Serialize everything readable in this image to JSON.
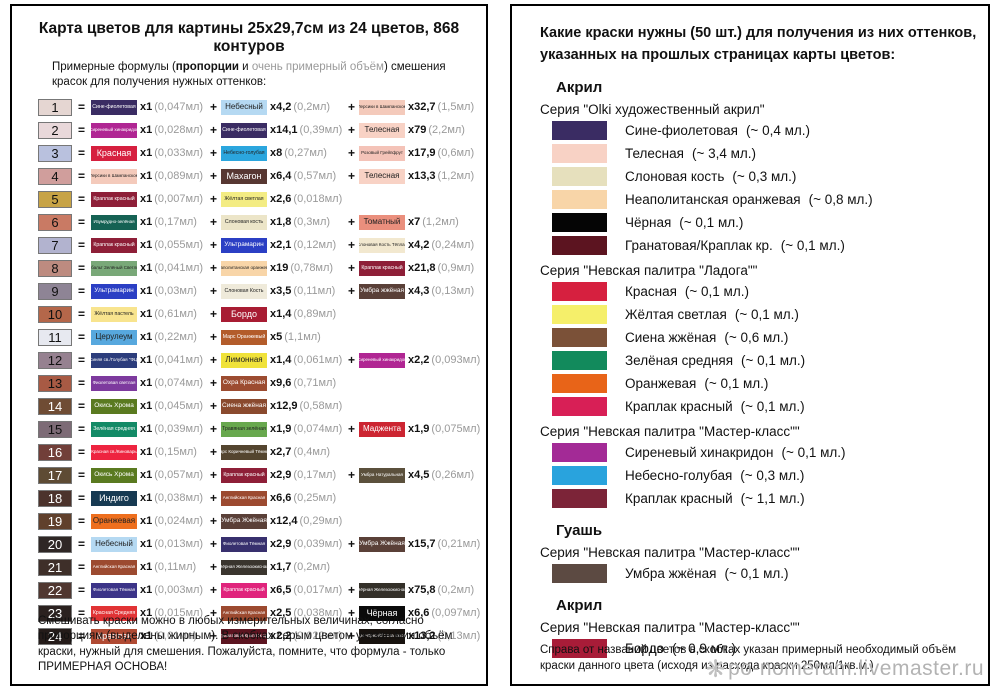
{
  "left_panel": {
    "title": "Карта цветов для картины 25х29,7см из 24 цветов, 868 контуров",
    "subtitle": {
      "pre": "Примерные формулы (",
      "bold": "пропорции",
      "mid": " и ",
      "gray": "очень примерный объём",
      "post": ") смешения красок для получения нужных оттенков:"
    },
    "rows": [
      {
        "num": "1",
        "swatch": "#e5d6d2",
        "components": [
          {
            "name": "Сине-фиолетовая",
            "bg": "#3a2c63",
            "mult": "х1",
            "vol": "(0,047мл)"
          },
          {
            "name": "Небесный",
            "bg": "#b5d9f2",
            "mult": "х4,2",
            "vol": "(0,2мл)"
          },
          {
            "name": "Персики в Шампанском",
            "bg": "#f4cabb",
            "mult": "х32,7",
            "vol": "(1,5мл)"
          }
        ]
      },
      {
        "num": "2",
        "swatch": "#e9d8da",
        "components": [
          {
            "name": "Сиреневый хинакридон",
            "bg": "#b02693",
            "mult": "х1",
            "vol": "(0,028мл)"
          },
          {
            "name": "Сине-фиолетовая",
            "bg": "#3a2c63",
            "mult": "х14,1",
            "vol": "(0,39мл)"
          },
          {
            "name": "Телесная",
            "bg": "#f8d2c5",
            "mult": "х79",
            "vol": "(2,2мл)"
          }
        ]
      },
      {
        "num": "3",
        "swatch": "#b9c1de",
        "components": [
          {
            "name": "Красная",
            "bg": "#d6203f",
            "mult": "х1",
            "vol": "(0,033мл)"
          },
          {
            "name": "Небесно-голубая",
            "bg": "#2ba6de",
            "mult": "х8",
            "vol": "(0,27мл)"
          },
          {
            "name": "Розовый Грейпфрут",
            "bg": "#f4c3b8",
            "mult": "х17,9",
            "vol": "(0,6мл)"
          }
        ]
      },
      {
        "num": "4",
        "swatch": "#d09e9c",
        "components": [
          {
            "name": "Персики в Шампанском",
            "bg": "#f4cabb",
            "mult": "х1",
            "vol": "(0,089мл)"
          },
          {
            "name": "Махагон",
            "bg": "#573732",
            "mult": "х6,4",
            "vol": "(0,57мл)"
          },
          {
            "name": "Телесная",
            "bg": "#f8d2c5",
            "mult": "х13,3",
            "vol": "(1,2мл)"
          }
        ]
      },
      {
        "num": "5",
        "swatch": "#c7a346",
        "components": [
          {
            "name": "Краплак красный",
            "bg": "#8e1f38",
            "mult": "х1",
            "vol": "(0,007мл)"
          },
          {
            "name": "Жёлтая светлая",
            "bg": "#f3ec83",
            "mult": "х2,6",
            "vol": "(0,018мл)"
          }
        ]
      },
      {
        "num": "6",
        "swatch": "#c97a64",
        "components": [
          {
            "name": "Изумрудно-зелёная",
            "bg": "#156254",
            "mult": "х1",
            "vol": "(0,17мл)"
          },
          {
            "name": "Слоновая кость",
            "bg": "#ece5c8",
            "mult": "х1,8",
            "vol": "(0,3мл)"
          },
          {
            "name": "Томатный",
            "bg": "#ea8f7d",
            "mult": "х7",
            "vol": "(1,2мл)"
          }
        ]
      },
      {
        "num": "7",
        "swatch": "#b2b3cf",
        "components": [
          {
            "name": "Краплак красный",
            "bg": "#8e1f38",
            "mult": "х1",
            "vol": "(0,055мл)"
          },
          {
            "name": "Ультрамарин",
            "bg": "#2b3fc4",
            "mult": "х2,1",
            "vol": "(0,12мл)"
          },
          {
            "name": "Слоновая Кость Тёплая",
            "bg": "#f2e8cf",
            "mult": "х4,2",
            "vol": "(0,24мл)"
          }
        ]
      },
      {
        "num": "8",
        "swatch": "#bd8b80",
        "components": [
          {
            "name": "Кобальт Зелёный Светлый",
            "bg": "#79a878",
            "mult": "х1",
            "vol": "(0,041мл)"
          },
          {
            "name": "Неаполитанская оранжевая",
            "bg": "#f8d5a8",
            "mult": "х19",
            "vol": "(0,78мл)"
          },
          {
            "name": "Краплак красный",
            "bg": "#8e1f38",
            "mult": "х21,8",
            "vol": "(0,9мл)"
          }
        ]
      },
      {
        "num": "9",
        "swatch": "#8e8495",
        "components": [
          {
            "name": "Ультрамарин",
            "bg": "#2b3fc4",
            "mult": "х1",
            "vol": "(0,03мл)"
          },
          {
            "name": "Слоновая Кость",
            "bg": "#efeada",
            "mult": "х3,5",
            "vol": "(0,11мл)"
          },
          {
            "name": "Умбра жжёная",
            "bg": "#5a4038",
            "mult": "х4,3",
            "vol": "(0,13мл)"
          }
        ]
      },
      {
        "num": "10",
        "swatch": "#b4674a",
        "components": [
          {
            "name": "Жёлтая пастель",
            "bg": "#f8e48e",
            "mult": "х1",
            "vol": "(0,61мл)"
          },
          {
            "name": "Бордо",
            "bg": "#a81c33",
            "mult": "х1,4",
            "vol": "(0,89мл)"
          }
        ]
      },
      {
        "num": "11",
        "swatch": "#e7e9f0",
        "components": [
          {
            "name": "Церулеум",
            "bg": "#57a8de",
            "mult": "х1",
            "vol": "(0,22мл)"
          },
          {
            "name": "Марс Оранжевый",
            "bg": "#b35c2b",
            "mult": "х5",
            "vol": "(1,1мл)"
          }
        ]
      },
      {
        "num": "12",
        "swatch": "#968190",
        "components": [
          {
            "name": "Синяя св./Голубая \"ФЦ\"",
            "bg": "#2c3d7c",
            "mult": "х1",
            "vol": "(0,041мл)"
          },
          {
            "name": "Лимонная",
            "bg": "#f0e23a",
            "mult": "х1,4",
            "vol": "(0,061мл)"
          },
          {
            "name": "Сиреневый хинакридон",
            "bg": "#b02693",
            "mult": "х2,2",
            "vol": "(0,093мл)"
          }
        ]
      },
      {
        "num": "13",
        "swatch": "#a85a44",
        "components": [
          {
            "name": "Фиолетовая светлая",
            "bg": "#7d3a9e",
            "mult": "х1",
            "vol": "(0,074мл)"
          },
          {
            "name": "Охра Красная",
            "bg": "#9c4c31",
            "mult": "х9,6",
            "vol": "(0,71мл)"
          }
        ]
      },
      {
        "num": "14",
        "swatch": "#6f4c34",
        "components": [
          {
            "name": "Окись Хрома",
            "bg": "#5a7a20",
            "mult": "х1",
            "vol": "(0,045мл)"
          },
          {
            "name": "Сиена жжёная",
            "bg": "#8a4a2e",
            "mult": "х12,9",
            "vol": "(0,58мл)"
          }
        ]
      },
      {
        "num": "15",
        "swatch": "#7d6b76",
        "components": [
          {
            "name": "Зелёная средняя",
            "bg": "#138a66",
            "mult": "х1",
            "vol": "(0,039мл)"
          },
          {
            "name": "Травяная зелёная",
            "bg": "#68a84e",
            "mult": "х1,9",
            "vol": "(0,074мл)"
          },
          {
            "name": "Маджента",
            "bg": "#cc2531",
            "mult": "х1,9",
            "vol": "(0,075мл)"
          }
        ]
      },
      {
        "num": "16",
        "swatch": "#713f39",
        "components": [
          {
            "name": "Красная св./Киноварь",
            "bg": "#ee2440",
            "mult": "х1",
            "vol": "(0,15мл)"
          },
          {
            "name": "Марс Коричневый Тёмный",
            "bg": "#54452f",
            "mult": "х2,7",
            "vol": "(0,4мл)"
          }
        ]
      },
      {
        "num": "17",
        "swatch": "#5e4b34",
        "components": [
          {
            "name": "Окись Хрома",
            "bg": "#5a7a20",
            "mult": "х1",
            "vol": "(0,057мл)"
          },
          {
            "name": "Краплак красный",
            "bg": "#8e1f38",
            "mult": "х2,9",
            "vol": "(0,17мл)"
          },
          {
            "name": "Умбра Натуральная",
            "bg": "#5b503c",
            "mult": "х4,5",
            "vol": "(0,26мл)"
          }
        ]
      },
      {
        "num": "18",
        "swatch": "#4c332c",
        "components": [
          {
            "name": "Индиго",
            "bg": "#173a52",
            "mult": "х1",
            "vol": "(0,038мл)"
          },
          {
            "name": "Английская Красная",
            "bg": "#9c4a30",
            "mult": "х6,6",
            "vol": "(0,25мл)"
          }
        ]
      },
      {
        "num": "19",
        "swatch": "#60402c",
        "components": [
          {
            "name": "Оранжевая",
            "bg": "#ee6f1e",
            "mult": "х1",
            "vol": "(0,024мл)"
          },
          {
            "name": "Умбра Жжёная",
            "bg": "#5a4038",
            "mult": "х12,4",
            "vol": "(0,29мл)"
          }
        ]
      },
      {
        "num": "20",
        "swatch": "#2f2725",
        "components": [
          {
            "name": "Небесный",
            "bg": "#b5d9f2",
            "mult": "х1",
            "vol": "(0,013мл)"
          },
          {
            "name": "Фиолетовая Тёмная",
            "bg": "#38306e",
            "mult": "х2,9",
            "vol": "(0,039мл)"
          },
          {
            "name": "Умбра Жжёная",
            "bg": "#5a4038",
            "mult": "х15,7",
            "vol": "(0,21мл)"
          }
        ]
      },
      {
        "num": "21",
        "swatch": "#3e2f29",
        "components": [
          {
            "name": "Английская Красная",
            "bg": "#9c4a30",
            "mult": "х1",
            "vol": "(0,11мл)"
          },
          {
            "name": "Чёрная Железоокисная",
            "bg": "#3a352e",
            "mult": "х1,7",
            "vol": "(0,2мл)"
          }
        ]
      },
      {
        "num": "22",
        "swatch": "#503730",
        "components": [
          {
            "name": "Фиолетовая Тёмная",
            "bg": "#3c3488",
            "mult": "х1",
            "vol": "(0,003мл)"
          },
          {
            "name": "Краплак красный",
            "bg": "#e0247c",
            "mult": "х6,5",
            "vol": "(0,017мл)"
          },
          {
            "name": "Чёрная Железоокисная",
            "bg": "#343029",
            "mult": "х75,8",
            "vol": "(0,2мл)"
          }
        ]
      },
      {
        "num": "23",
        "swatch": "#2b211f",
        "components": [
          {
            "name": "Красная Средняя",
            "bg": "#e13335",
            "mult": "х1",
            "vol": "(0,015мл)"
          },
          {
            "name": "Английская Красная",
            "bg": "#9c4a30",
            "mult": "х2,5",
            "vol": "(0,038мл)"
          },
          {
            "name": "Чёрная",
            "bg": "#0a0a0a",
            "mult": "х6,6",
            "vol": "(0,097мл)"
          }
        ]
      },
      {
        "num": "24",
        "swatch": "#241b19",
        "components": [
          {
            "name": "Краплак",
            "bg": "#b04a33",
            "mult": "х1",
            "vol": "(0,01мл)"
          },
          {
            "name": "Гранатовая/Краплак кр.",
            "bg": "#5c1420",
            "mult": "х2,2",
            "vol": "(0,022мл)"
          },
          {
            "name": "Марс чёрный/Сажа газовая",
            "bg": "#17120e",
            "mult": "х13,2",
            "vol": "(0,13мл)"
          }
        ]
      }
    ],
    "footnote": "Смешивать краски можно в любых измерительных величинах, согласно пропорциям (выделены жирным). В скобках серым цветом указан мин.объём краски, нужный для смешения. Пожалуйста, помните, что формула - только ПРИМЕРНАЯ ОСНОВА!"
  },
  "right_panel": {
    "title": "Какие краски нужны (50 шт.) для получения из них оттенков, указанных на прошлых страницах карты цветов:",
    "sections": [
      {
        "type": "heading",
        "text": "Акрил"
      },
      {
        "type": "series",
        "text": "Серия \"Olki художественный акрил\""
      },
      {
        "type": "paint",
        "color": "#3a2c63",
        "label": "Сине-фиолетовая",
        "volume": "(~ 0,4 мл.)"
      },
      {
        "type": "paint",
        "color": "#f8d2c5",
        "label": "Телесная",
        "volume": "(~ 3,4 мл.)"
      },
      {
        "type": "paint",
        "color": "#e6e0bd",
        "label": "Слоновая кость",
        "volume": "(~ 0,3 мл.)"
      },
      {
        "type": "paint",
        "color": "#f8d5a8",
        "label": "Неаполитанская оранжевая",
        "volume": "(~ 0,8 мл.)"
      },
      {
        "type": "paint",
        "color": "#050505",
        "label": "Чёрная",
        "volume": "(~ 0,1 мл.)"
      },
      {
        "type": "paint",
        "color": "#5c1420",
        "label": "Гранатовая/Краплак кр.",
        "volume": "(~ 0,1 мл.)"
      },
      {
        "type": "series",
        "text": "Серия \"Невская палитра \"Ладога\"\""
      },
      {
        "type": "paint",
        "color": "#d6203f",
        "label": "Красная",
        "volume": "(~ 0,1 мл.)"
      },
      {
        "type": "paint",
        "color": "#f5ef6a",
        "label": "Жёлтая светлая",
        "volume": "(~ 0,1 мл.)"
      },
      {
        "type": "paint",
        "color": "#7b5138",
        "label": "Сиена жжёная",
        "volume": "(~ 0,6 мл.)"
      },
      {
        "type": "paint",
        "color": "#128a5c",
        "label": "Зелёная средняя",
        "volume": "(~ 0,1 мл.)"
      },
      {
        "type": "paint",
        "color": "#e86418",
        "label": "Оранжевая",
        "volume": "(~ 0,1 мл.)"
      },
      {
        "type": "paint",
        "color": "#d81f56",
        "label": "Краплак красный",
        "volume": "(~ 0,1 мл.)"
      },
      {
        "type": "series",
        "text": "Серия \"Невская палитра \"Мастер-класс\"\""
      },
      {
        "type": "paint",
        "color": "#a32a96",
        "label": "Сиреневый хинакридон",
        "volume": "(~ 0,1 мл.)"
      },
      {
        "type": "paint",
        "color": "#29a3dd",
        "label": "Небесно-голубая",
        "volume": "(~ 0,3 мл.)"
      },
      {
        "type": "paint",
        "color": "#7c2438",
        "label": "Краплак красный",
        "volume": "(~ 1,1 мл.)"
      },
      {
        "type": "heading",
        "text": "Гуашь"
      },
      {
        "type": "series",
        "text": "Серия \"Невская палитра \"Мастер-класс\"\""
      },
      {
        "type": "paint",
        "color": "#5c4a42",
        "label": "Умбра жжёная",
        "volume": "(~ 0,1 мл.)"
      },
      {
        "type": "heading",
        "text": "Акрил"
      },
      {
        "type": "series",
        "text": "Серия \"Невская палитра \"Мастер-класс\"\""
      },
      {
        "type": "paint",
        "color": "#a81c38",
        "label": "Бордо",
        "volume": "(~ 0,9 мл.)"
      }
    ],
    "footnote": "Справа от названий цветов в скобках указан примерный необходимый объём краски данного цвета (исходя из расхода краски 250мл/1кв.м.)",
    "watermark": "po-nomeram.livemaster.ru"
  }
}
